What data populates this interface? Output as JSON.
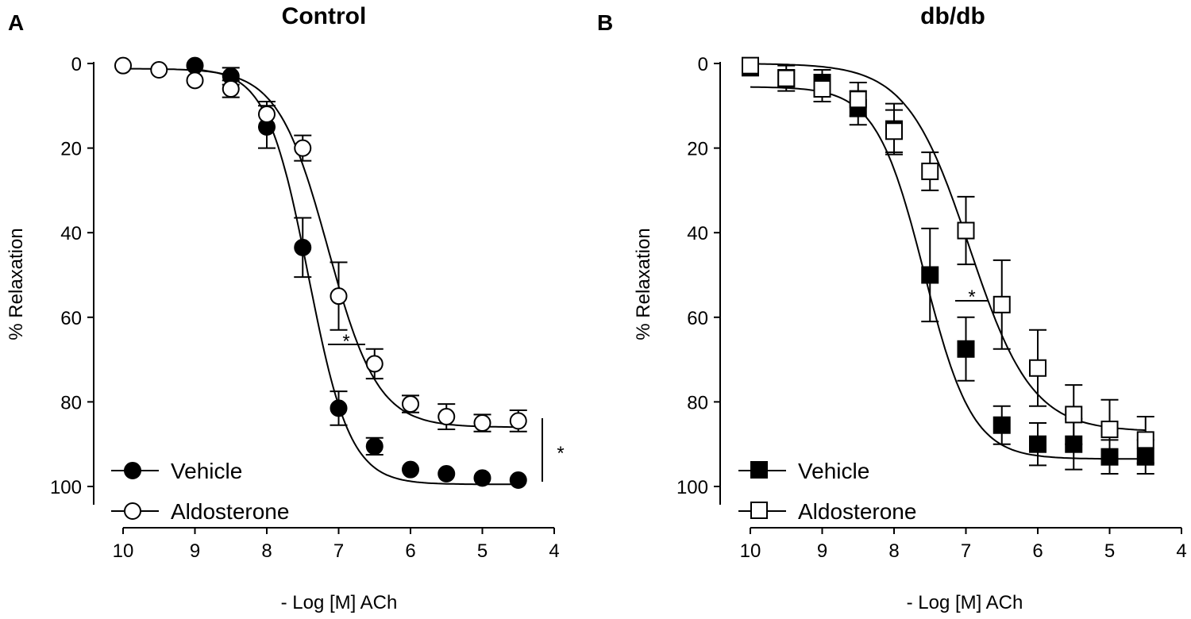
{
  "chart_data": [
    {
      "type": "scatter",
      "panel_label": "A",
      "title": "Control",
      "xlabel": "- Log [M] ACh",
      "ylabel": "% Relaxation",
      "xlim": [
        10,
        4
      ],
      "ylim": [
        0,
        100
      ],
      "y_inverted": true,
      "x_ticks": [
        10,
        9,
        8,
        7,
        6,
        5,
        4
      ],
      "y_ticks": [
        0,
        20,
        40,
        60,
        80,
        100
      ],
      "legend_position": "bottom-left",
      "series": [
        {
          "name": "Vehicle",
          "marker": "circle",
          "filled": true,
          "x": [
            9,
            8.5,
            8,
            7.5,
            7,
            6.5,
            6,
            5.5,
            5,
            4.5
          ],
          "y": [
            0.5,
            3,
            15,
            43.5,
            81.5,
            90.5,
            96,
            97,
            98,
            98.5
          ],
          "err": [
            0,
            2,
            5,
            7,
            4,
            2,
            0,
            0,
            0,
            0
          ],
          "fit": {
            "bottom": 1,
            "top": 99.5,
            "logEC50": 7.42,
            "hill": 1.5
          }
        },
        {
          "name": "Aldosterone",
          "marker": "circle",
          "filled": false,
          "x": [
            10,
            9.5,
            9,
            8.5,
            8,
            7.5,
            7,
            6.5,
            6,
            5.5,
            5,
            4.5
          ],
          "y": [
            0.5,
            1.5,
            4,
            6,
            12,
            20,
            55,
            71,
            80.5,
            83.5,
            85,
            84.5
          ],
          "err": [
            0,
            0,
            0,
            2,
            3,
            3,
            8,
            3.5,
            2,
            3,
            2,
            2.5
          ],
          "fit": {
            "bottom": 1.2,
            "top": 86,
            "logEC50": 7.15,
            "hill": 1.25
          }
        }
      ],
      "annotations": [
        {
          "text": "*",
          "note": "between curves near -log 7"
        },
        {
          "text": "*",
          "note": "bracket at maximal response"
        }
      ]
    },
    {
      "type": "scatter",
      "panel_label": "B",
      "title": "db/db",
      "xlabel": "- Log [M] ACh",
      "ylabel": "% Relaxation",
      "xlim": [
        10,
        4
      ],
      "ylim": [
        0,
        100
      ],
      "y_inverted": true,
      "x_ticks": [
        10,
        9,
        8,
        7,
        6,
        5,
        4
      ],
      "y_ticks": [
        0,
        20,
        40,
        60,
        80,
        100
      ],
      "legend_position": "bottom-left",
      "series": [
        {
          "name": "Vehicle",
          "marker": "square",
          "filled": true,
          "x": [
            10,
            9.5,
            9,
            8.5,
            8,
            7.5,
            7,
            6.5,
            6,
            5.5,
            5,
            4.5
          ],
          "y": [
            1,
            3.5,
            4.5,
            10.5,
            15.5,
            50,
            67.5,
            85.5,
            90,
            90,
            93,
            93
          ],
          "err": [
            0,
            3,
            3,
            4,
            6,
            11,
            7.5,
            4.5,
            5,
            6,
            4,
            4
          ],
          "fit": {
            "bottom": 5.5,
            "top": 93.5,
            "logEC50": 7.58,
            "hill": 1.3
          }
        },
        {
          "name": "Aldosterone",
          "marker": "square",
          "filled": false,
          "x": [
            10,
            9.5,
            9,
            8.5,
            8,
            7.5,
            7,
            6.5,
            6,
            5.5,
            5,
            4.5
          ],
          "y": [
            0.5,
            3.5,
            6,
            8.5,
            16,
            25.5,
            39.5,
            57,
            72,
            83,
            86.5,
            89
          ],
          "err": [
            0,
            2,
            3,
            4,
            5,
            4.5,
            8,
            10.5,
            9,
            7,
            7,
            5.5
          ],
          "fit": {
            "bottom": 0,
            "top": 87,
            "logEC50": 6.95,
            "hill": 1.0
          }
        }
      ],
      "annotations": [
        {
          "text": "*",
          "note": "between curves near -log 7"
        }
      ]
    }
  ]
}
